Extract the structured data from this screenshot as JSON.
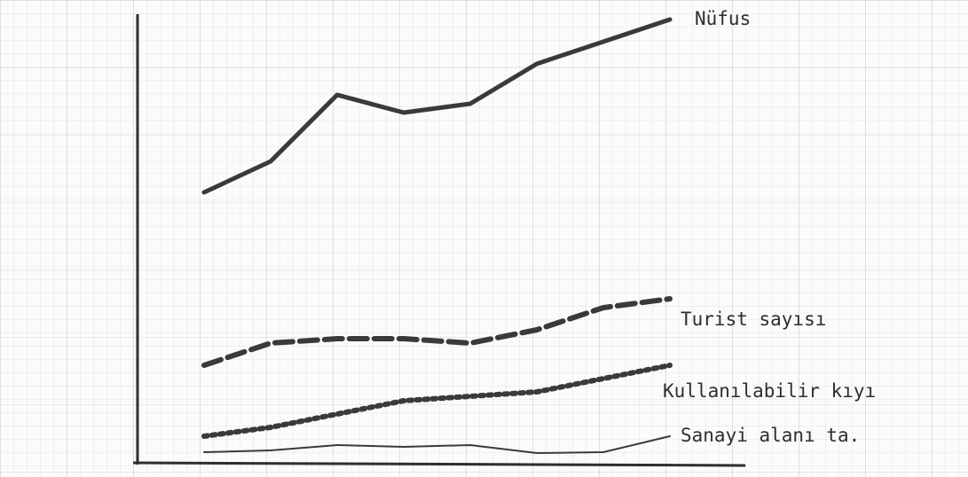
{
  "chart_data": {
    "type": "line",
    "categories": [
      null,
      null,
      null,
      null,
      null,
      null,
      null,
      null
    ],
    "ylim": [
      0,
      100
    ],
    "series": [
      {
        "name": "Nüfus",
        "color": "#3a3a3a",
        "line_style": "solid",
        "values": [
          61,
          68,
          83,
          79,
          81,
          90,
          95,
          100
        ]
      },
      {
        "name": "Turist sayısı",
        "color": "#3a3a3a",
        "line_style": "dashed",
        "values": [
          22,
          27,
          28,
          28,
          27,
          30,
          35,
          37
        ]
      },
      {
        "name": "Kullanılabilir kıyı",
        "color": "#3a3a3a",
        "line_style": "dotted",
        "values": [
          6,
          8,
          11,
          14,
          15,
          16,
          19,
          22
        ]
      },
      {
        "name": "Sanayi alanı ta.",
        "color": "#3a3a3a",
        "line_style": "thin",
        "values": [
          2.4,
          2.8,
          4,
          3.6,
          4,
          2.2,
          2.4,
          6
        ]
      }
    ]
  }
}
